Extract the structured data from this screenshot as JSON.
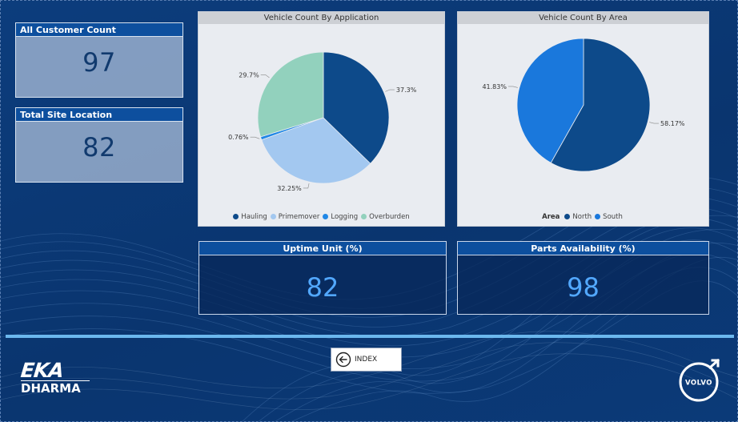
{
  "cards": {
    "customer": {
      "label": "All Customer Count",
      "value": "97"
    },
    "site": {
      "label": "Total Site Location",
      "value": "82"
    },
    "uptime": {
      "label": "Uptime Unit (%)",
      "value": "82"
    },
    "parts": {
      "label": "Parts Availability (%)",
      "value": "98"
    }
  },
  "index_button": {
    "label": "INDEX",
    "icon": "arrow-left-circle-icon"
  },
  "logos": {
    "eka_line1": "EKA",
    "eka_line2": "DHARMA",
    "volvo": "VOLVO"
  },
  "colors": {
    "hauling": "#0d4a8a",
    "primemover": "#a3c8f0",
    "logging": "#1f87e6",
    "overburden": "#92d1bd",
    "north": "#0d4a8a",
    "south": "#1a78dc"
  },
  "chart_data": [
    {
      "type": "pie",
      "title": "Vehicle Count By Application",
      "legend_title": "",
      "legend_position": "bottom",
      "categories": [
        "Hauling",
        "Primemover",
        "Logging",
        "Overburden"
      ],
      "values": [
        37.3,
        32.25,
        0.76,
        29.7
      ],
      "labels": [
        "37.3%",
        "32.25%",
        "0.76%",
        "29.7%"
      ],
      "colors": [
        "#0d4a8a",
        "#a3c8f0",
        "#1f87e6",
        "#92d1bd"
      ]
    },
    {
      "type": "pie",
      "title": "Vehicle Count By Area",
      "legend_title": "Area",
      "legend_position": "bottom",
      "categories": [
        "North",
        "South"
      ],
      "values": [
        58.17,
        41.83
      ],
      "labels": [
        "58.17%",
        "41.83%"
      ],
      "colors": [
        "#0d4a8a",
        "#1a78dc"
      ]
    }
  ]
}
